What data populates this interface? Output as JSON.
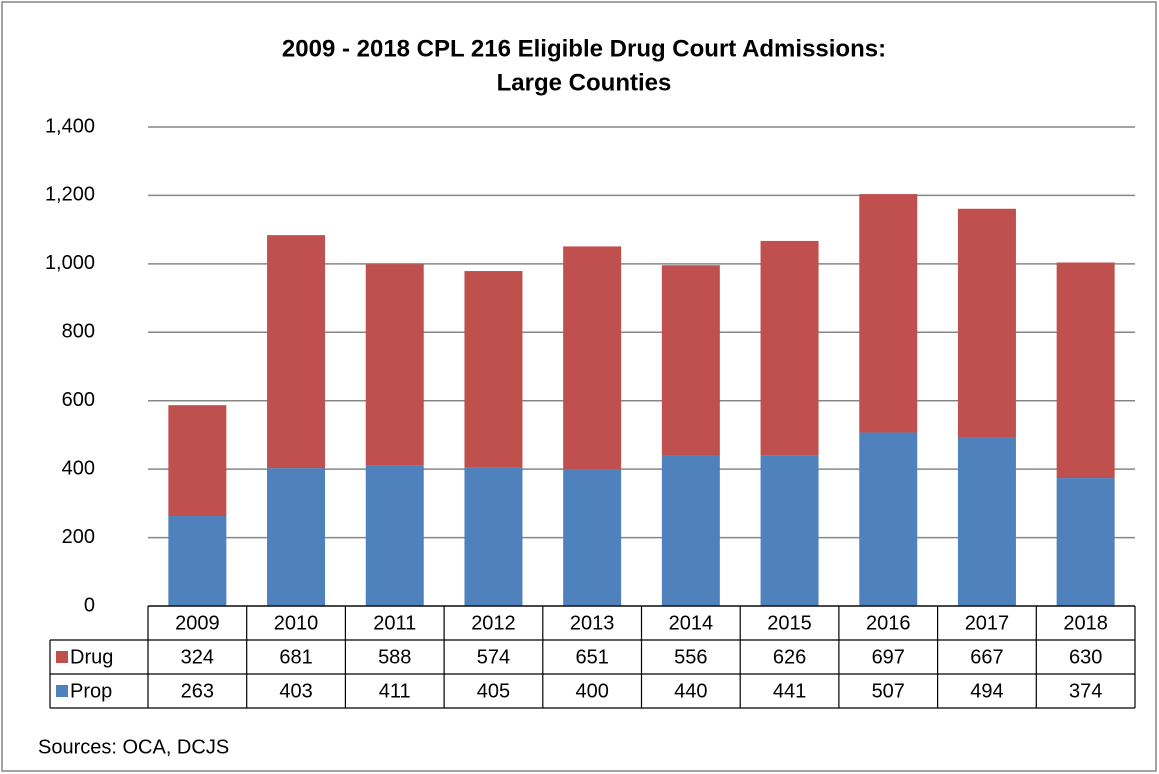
{
  "chart_data": {
    "type": "bar",
    "stacked": true,
    "title": [
      "2009 - 2018 CPL 216 Eligible Drug Court Admissions:",
      "Large Counties"
    ],
    "categories": [
      "2009",
      "2010",
      "2011",
      "2012",
      "2013",
      "2014",
      "2015",
      "2016",
      "2017",
      "2018"
    ],
    "series": [
      {
        "name": "Drug",
        "color": "#c0504d",
        "values": [
          324,
          681,
          588,
          574,
          651,
          556,
          626,
          697,
          667,
          630
        ]
      },
      {
        "name": "Prop",
        "color": "#4f81bd",
        "values": [
          263,
          403,
          411,
          405,
          400,
          440,
          441,
          507,
          494,
          374
        ]
      }
    ],
    "ylim": [
      0,
      1400
    ],
    "yticks": [
      0,
      200,
      400,
      600,
      800,
      {
        "value": 1000,
        "label": "1,000"
      },
      {
        "value": 1200,
        "label": "1,200"
      },
      {
        "value": 1400,
        "label": "1,400"
      }
    ],
    "grid": true,
    "source": "Sources: OCA, DCJS"
  }
}
